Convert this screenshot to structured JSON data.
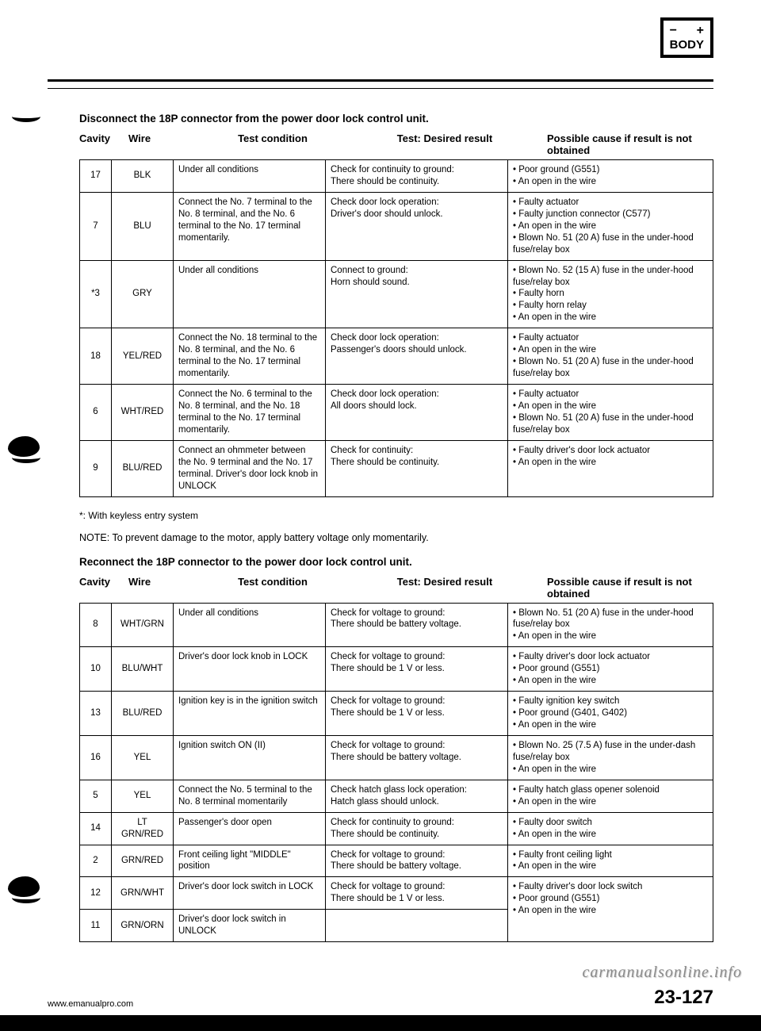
{
  "badge": {
    "minus": "−",
    "plus": "+",
    "label": "BODY"
  },
  "section1_title": "Disconnect the 18P connector from the power door lock control unit.",
  "headers": {
    "cavity": "Cavity",
    "wire": "Wire",
    "cond": "Test condition",
    "result": "Test: Desired result",
    "cause": "Possible cause if result is not obtained"
  },
  "table1": [
    {
      "cavity": "17",
      "wire": "BLK",
      "cond": "Under all conditions",
      "result": "Check for continuity to ground:\nThere should be continuity.",
      "cause": "• Poor ground (G551)\n• An open in the wire"
    },
    {
      "cavity": "7",
      "wire": "BLU",
      "cond": "Connect the No. 7 terminal to the No. 8 terminal, and the No. 6 terminal to the No. 17 terminal momentarily.",
      "result": "Check door lock operation:\nDriver's door should unlock.",
      "cause": "• Faulty actuator\n• Faulty junction connector (C577)\n• An open in the wire\n• Blown No. 51 (20 A) fuse in the under-hood fuse/relay box"
    },
    {
      "cavity": "*3",
      "wire": "GRY",
      "cond": "Under all conditions",
      "result": "Connect to ground:\nHorn should sound.",
      "cause": "• Blown No. 52 (15 A) fuse in the under-hood fuse/relay box\n• Faulty horn\n• Faulty horn relay\n• An open in the wire"
    },
    {
      "cavity": "18",
      "wire": "YEL/RED",
      "cond": "Connect the No. 18 terminal to the No. 8 terminal, and the No. 6 terminal to the No. 17 terminal momentarily.",
      "result": "Check door lock operation:\nPassenger's doors should unlock.",
      "cause": "• Faulty actuator\n• An open in the wire\n• Blown No. 51 (20 A) fuse in the under-hood fuse/relay box"
    },
    {
      "cavity": "6",
      "wire": "WHT/RED",
      "cond": "Connect the No. 6 terminal to the No. 8 terminal, and the No. 18 terminal to the No. 17 terminal momentarily.",
      "result": "Check door lock operation:\nAll doors should lock.",
      "cause": "• Faulty actuator\n• An open in the wire\n• Blown No. 51 (20 A) fuse in the under-hood fuse/relay box"
    },
    {
      "cavity": "9",
      "wire": "BLU/RED",
      "cond": "Connect an ohmmeter between the No. 9 terminal and the No. 17 terminal. Driver's door lock knob in UNLOCK",
      "result": "Check for continuity:\nThere should be continuity.",
      "cause": "• Faulty driver's door lock actuator\n• An open in the wire"
    }
  ],
  "note_keyless": "*: With keyless entry system",
  "note_prevent": "NOTE: To prevent damage to the motor, apply battery voltage only momentarily.",
  "section2_title": "Reconnect the 18P connector to the power door lock control unit.",
  "table2": [
    {
      "cavity": "8",
      "wire": "WHT/GRN",
      "cond": "Under all conditions",
      "result": "Check for voltage to ground:\nThere should be battery voltage.",
      "cause": "• Blown No. 51 (20 A) fuse in the under-hood fuse/relay box\n• An open in the wire"
    },
    {
      "cavity": "10",
      "wire": "BLU/WHT",
      "cond": "Driver's door lock knob in LOCK",
      "result": "Check for voltage to ground:\nThere should be 1 V or less.",
      "cause": "• Faulty driver's door lock actuator\n• Poor ground (G551)\n• An open in the wire"
    },
    {
      "cavity": "13",
      "wire": "BLU/RED",
      "cond": "Ignition key is in the ignition switch",
      "result": "Check for voltage to ground:\nThere should be 1 V or less.",
      "cause": "• Faulty ignition key switch\n• Poor ground (G401, G402)\n• An open in the wire"
    },
    {
      "cavity": "16",
      "wire": "YEL",
      "cond": "Ignition switch ON (II)",
      "result": "Check for voltage to ground:\nThere should be battery voltage.",
      "cause": "• Blown No. 25 (7.5 A) fuse in the under-dash fuse/relay box\n• An open in the wire"
    },
    {
      "cavity": "5",
      "wire": "YEL",
      "cond": "Connect the No. 5 terminal to the No. 8 terminal momentarily",
      "result": "Check hatch glass lock operation:\nHatch glass should unlock.",
      "cause": "• Faulty hatch glass opener solenoid\n• An open in the wire"
    },
    {
      "cavity": "14",
      "wire": "LT GRN/RED",
      "cond": "Passenger's door open",
      "result": "Check for continuity to ground:\nThere should be continuity.",
      "cause": "• Faulty door switch\n• An open in the wire"
    },
    {
      "cavity": "2",
      "wire": "GRN/RED",
      "cond": "Front ceiling light \"MIDDLE\" position",
      "result": "Check for voltage to ground:\nThere should be battery voltage.",
      "cause": "• Faulty front ceiling light\n• An open in the wire"
    },
    {
      "cavity": "12",
      "wire": "GRN/WHT",
      "cond": "Driver's door lock switch in LOCK",
      "result": "Check for voltage to ground:\nThere should be 1 V or less.",
      "cause": "• Faulty driver's door lock switch\n• Poor ground (G551)\n• An open in the wire",
      "rowspan_cause": true
    },
    {
      "cavity": "11",
      "wire": "GRN/ORN",
      "cond": "Driver's door lock switch in UNLOCK",
      "result": "",
      "cause": ""
    }
  ],
  "footer": {
    "url": "www.emanualpro.com",
    "page": "23-127",
    "watermark": "carmanualsonline.info"
  }
}
